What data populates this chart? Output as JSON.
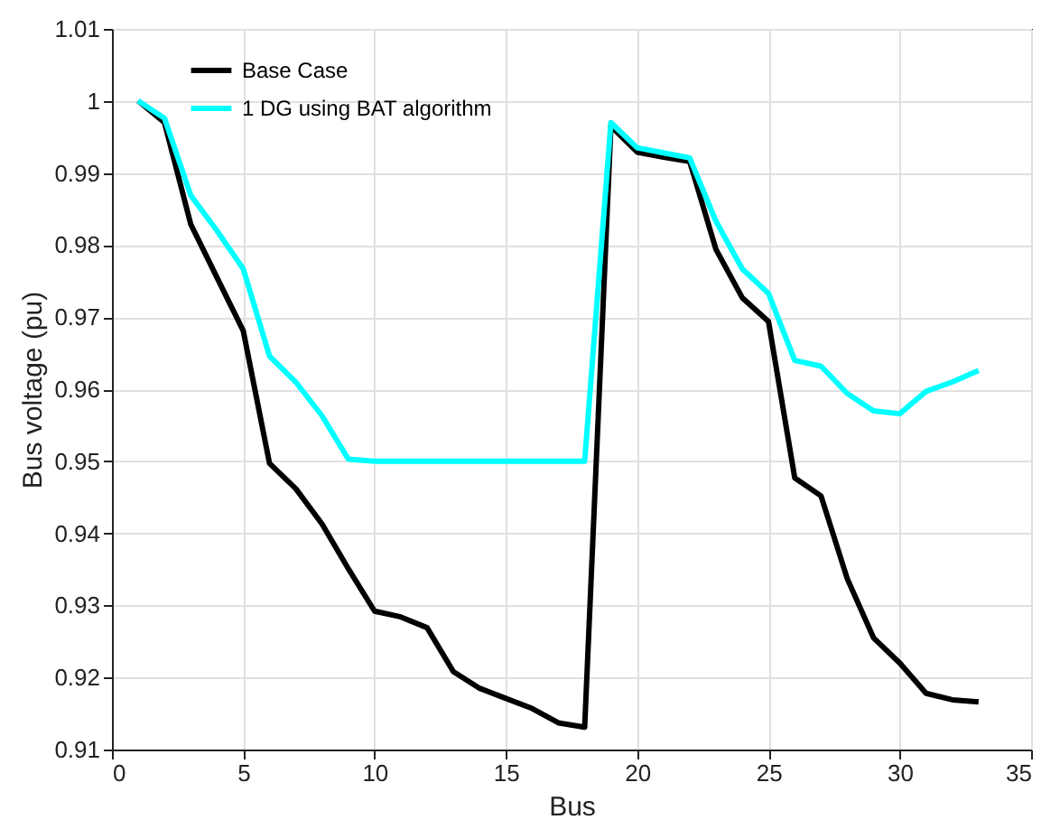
{
  "chart_data": {
    "type": "line",
    "xlabel": "Bus",
    "ylabel": "Bus voltage (pu)",
    "x": [
      1,
      2,
      3,
      4,
      5,
      6,
      7,
      8,
      9,
      10,
      11,
      12,
      13,
      14,
      15,
      16,
      17,
      18,
      19,
      20,
      21,
      22,
      23,
      24,
      25,
      26,
      27,
      28,
      29,
      30,
      31,
      32,
      33
    ],
    "series": [
      {
        "name": "Base Case",
        "color": "#000000",
        "values": [
          1.0,
          0.997,
          0.9829,
          0.9755,
          0.9681,
          0.9497,
          0.9462,
          0.9413,
          0.9351,
          0.9292,
          0.9284,
          0.9269,
          0.9208,
          0.9185,
          0.9171,
          0.9157,
          0.9137,
          0.9131,
          0.9965,
          0.9929,
          0.9922,
          0.9916,
          0.9794,
          0.9727,
          0.9694,
          0.9477,
          0.9452,
          0.9337,
          0.9255,
          0.922,
          0.9178,
          0.9169,
          0.9166
        ]
      },
      {
        "name": "1 DG using BAT algorithm",
        "color": "#00ffff",
        "values": [
          1.0,
          0.9976,
          0.9869,
          0.982,
          0.9767,
          0.9646,
          0.961,
          0.9563,
          0.9503,
          0.95,
          0.95,
          0.95,
          0.95,
          0.95,
          0.95,
          0.95,
          0.95,
          0.95,
          0.997,
          0.9935,
          0.9928,
          0.9921,
          0.9833,
          0.9767,
          0.9733,
          0.964,
          0.9632,
          0.9594,
          0.957,
          0.9566,
          0.9597,
          0.961,
          0.9626
        ]
      }
    ],
    "xlim": [
      0,
      35
    ],
    "xticks": [
      0,
      5,
      10,
      15,
      20,
      25,
      30,
      35
    ],
    "ylim": [
      0.91,
      1.01
    ],
    "yticks": [
      0.91,
      0.92,
      0.93,
      0.94,
      0.95,
      0.96,
      0.97,
      0.98,
      0.99,
      1,
      1.01
    ],
    "grid": true,
    "legend": "top left",
    "line_style": "solid",
    "marker": "none"
  }
}
